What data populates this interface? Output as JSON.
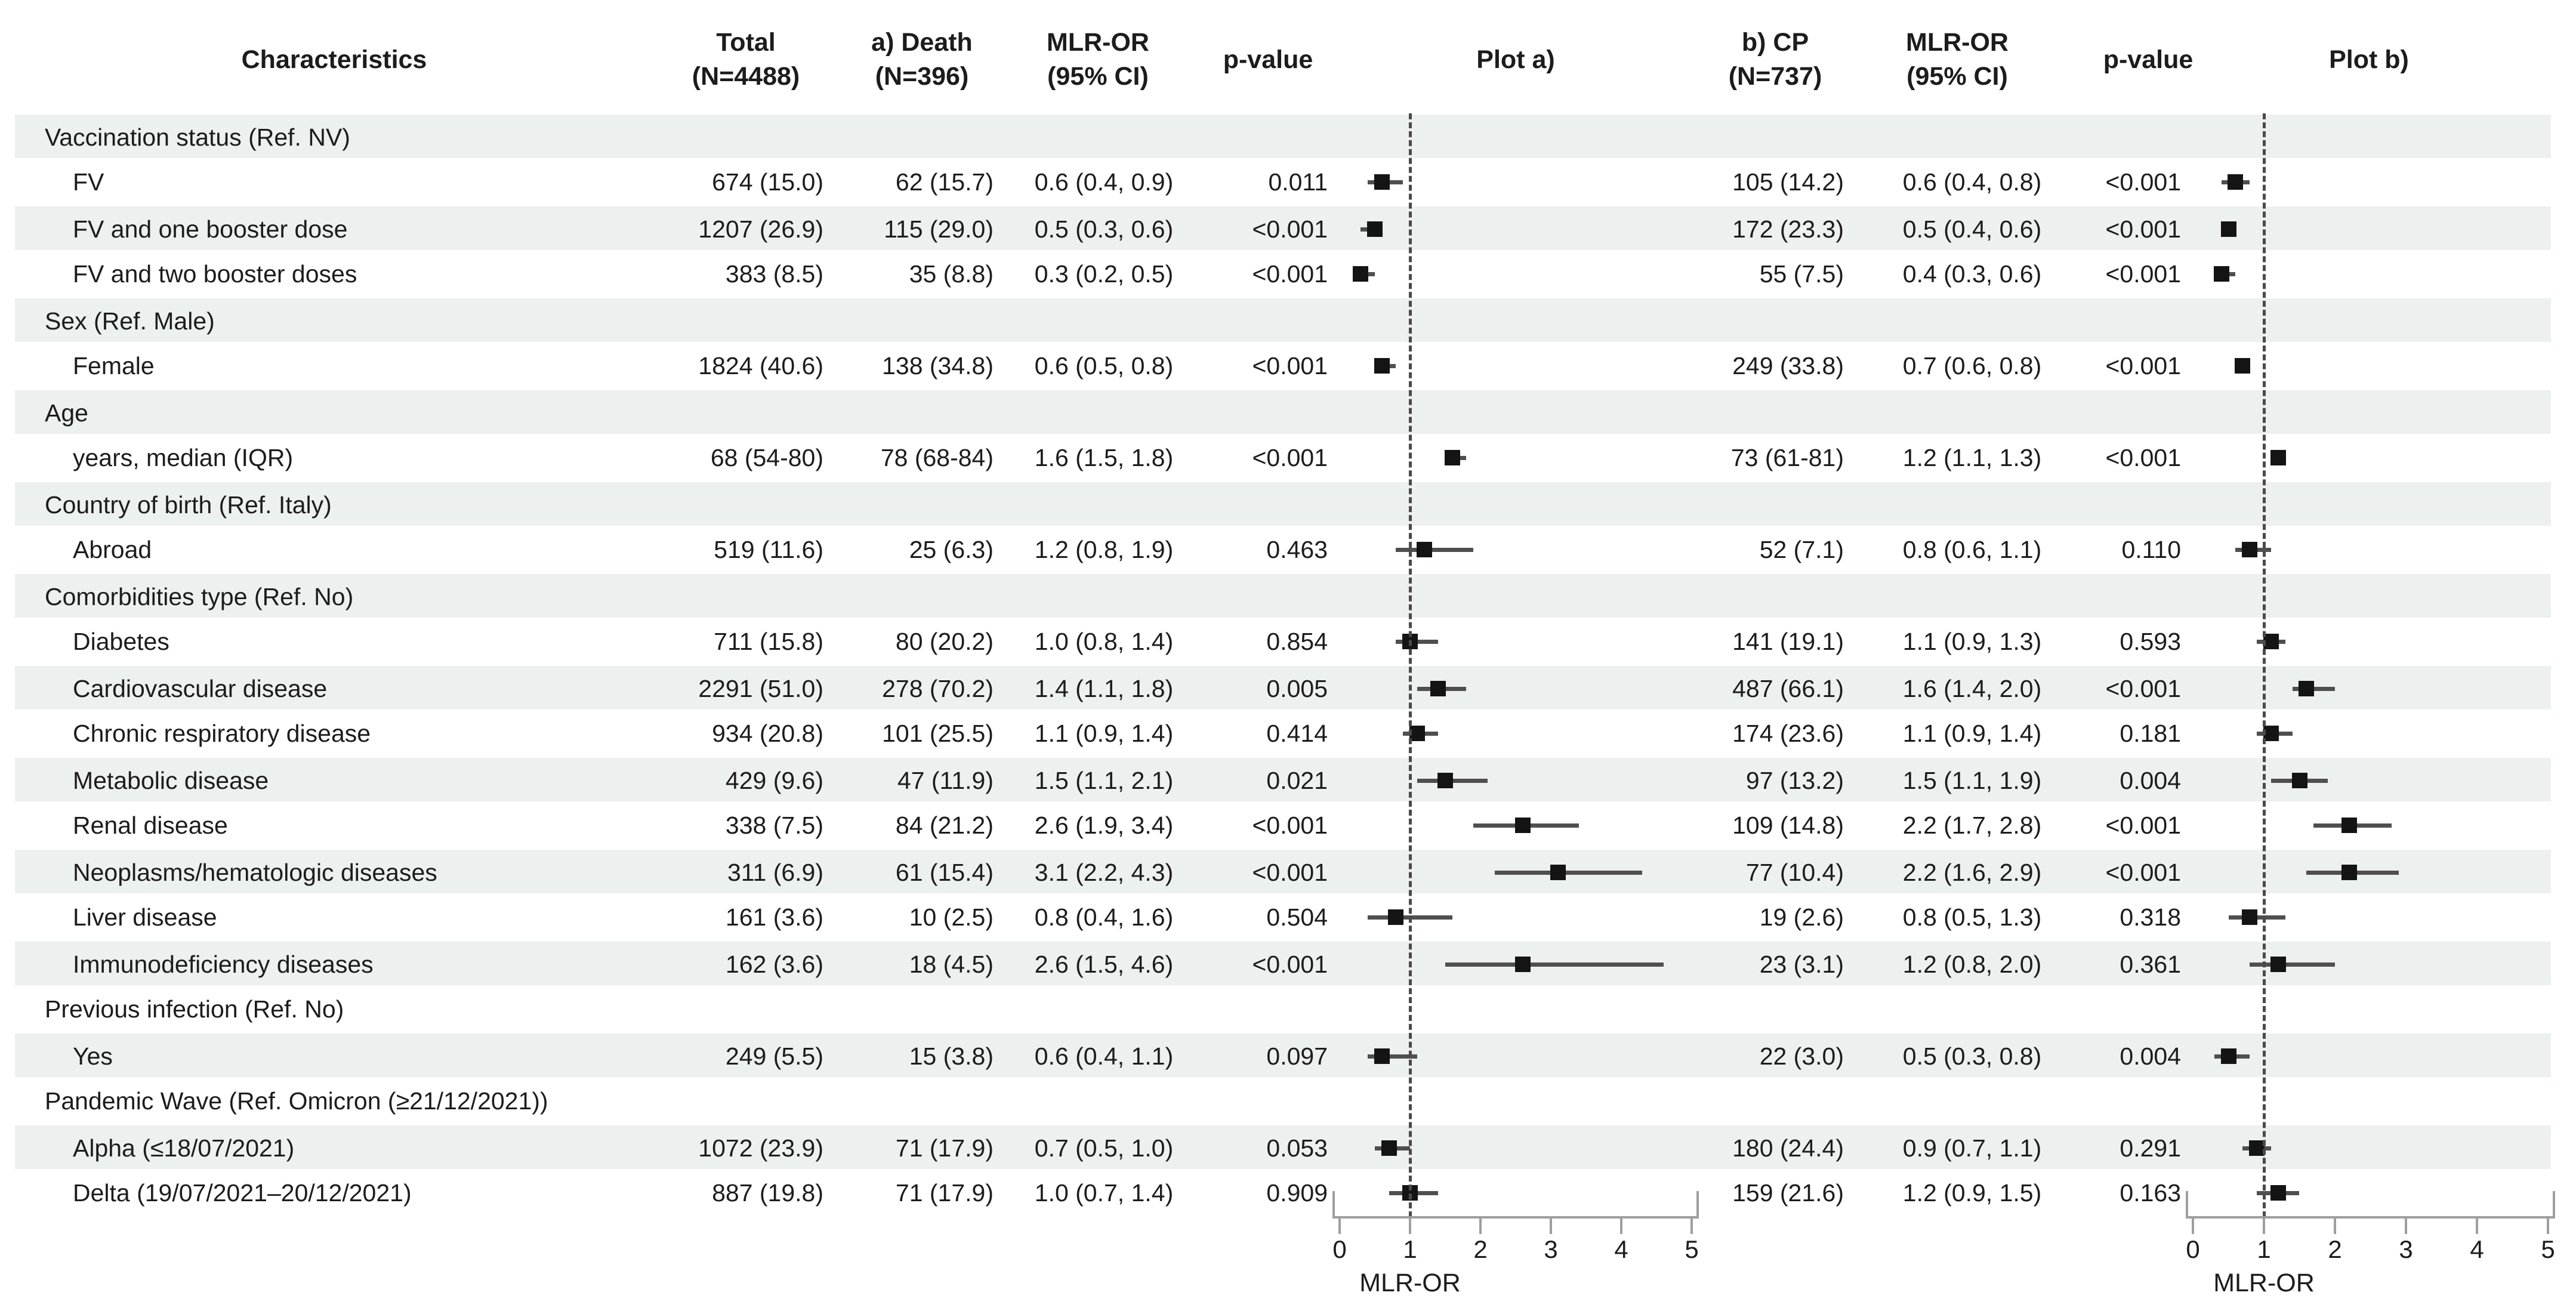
{
  "header": {
    "characteristics": "Characteristics",
    "total_l1": "Total",
    "total_l2": "(N=4488)",
    "death_l1": "a) Death",
    "death_l2": "(N=396)",
    "mlr_a_l1": "MLR-OR",
    "mlr_a_l2": "(95% CI)",
    "pvalue_a": "p-value",
    "plot_a": "Plot a)",
    "cp_l1": "b) CP",
    "cp_l2": "(N=737)",
    "mlr_b_l1": "MLR-OR",
    "mlr_b_l2": "(95% CI)",
    "pvalue_b": "p-value",
    "plot_b": "Plot b)"
  },
  "axis": {
    "ticks": [
      "0",
      "1",
      "2",
      "3",
      "4",
      "5"
    ],
    "label": "MLR-OR"
  },
  "colors": {
    "band": "#ecf0ef",
    "marker": "#141414",
    "ci_line": "#4f4f4f",
    "dashed_ref": "#4a4a4a",
    "axis": "#9e9e9e",
    "text": "#1c1c1c"
  },
  "rows": [
    {
      "type": "section",
      "label": "Vaccination status (Ref. NV)"
    },
    {
      "type": "item",
      "label": "FV",
      "total": "674 (15.0)",
      "death": "62 (15.7)",
      "mlr_a": "0.6 (0.4, 0.9)",
      "p_a": "0.011",
      "fa": [
        0.6,
        0.4,
        0.9
      ],
      "cp": "105 (14.2)",
      "mlr_b": "0.6 (0.4, 0.8)",
      "p_b": "<0.001",
      "fb": [
        0.6,
        0.4,
        0.8
      ]
    },
    {
      "type": "item",
      "label": "FV and one booster dose",
      "total": "1207 (26.9)",
      "death": "115 (29.0)",
      "mlr_a": "0.5 (0.3, 0.6)",
      "p_a": "<0.001",
      "fa": [
        0.5,
        0.3,
        0.6
      ],
      "cp": "172 (23.3)",
      "mlr_b": "0.5 (0.4, 0.6)",
      "p_b": "<0.001",
      "fb": [
        0.5,
        0.4,
        0.6
      ]
    },
    {
      "type": "item",
      "label": "FV and two booster doses",
      "total": "383 (8.5)",
      "death": "35 (8.8)",
      "mlr_a": "0.3 (0.2, 0.5)",
      "p_a": "<0.001",
      "fa": [
        0.3,
        0.2,
        0.5
      ],
      "cp": "55 (7.5)",
      "mlr_b": "0.4 (0.3, 0.6)",
      "p_b": "<0.001",
      "fb": [
        0.4,
        0.3,
        0.6
      ]
    },
    {
      "type": "section",
      "label": "Sex (Ref. Male)"
    },
    {
      "type": "item",
      "label": "Female",
      "total": "1824 (40.6)",
      "death": "138 (34.8)",
      "mlr_a": "0.6 (0.5, 0.8)",
      "p_a": "<0.001",
      "fa": [
        0.6,
        0.5,
        0.8
      ],
      "cp": "249 (33.8)",
      "mlr_b": "0.7 (0.6, 0.8)",
      "p_b": "<0.001",
      "fb": [
        0.7,
        0.6,
        0.8
      ]
    },
    {
      "type": "section",
      "label": "Age"
    },
    {
      "type": "item",
      "label": "years, median (IQR)",
      "total": "68 (54-80)",
      "death": "78 (68-84)",
      "mlr_a": "1.6 (1.5, 1.8)",
      "p_a": "<0.001",
      "fa": [
        1.6,
        1.5,
        1.8
      ],
      "cp": "73 (61-81)",
      "mlr_b": "1.2 (1.1, 1.3)",
      "p_b": "<0.001",
      "fb": [
        1.2,
        1.1,
        1.3
      ]
    },
    {
      "type": "section",
      "label": "Country of birth  (Ref. Italy)"
    },
    {
      "type": "item",
      "label": "Abroad",
      "total": "519 (11.6)",
      "death": "25 (6.3)",
      "mlr_a": "1.2 (0.8, 1.9)",
      "p_a": "0.463",
      "fa": [
        1.2,
        0.8,
        1.9
      ],
      "cp": "52 (7.1)",
      "mlr_b": "0.8 (0.6, 1.1)",
      "p_b": "0.110",
      "fb": [
        0.8,
        0.6,
        1.1
      ]
    },
    {
      "type": "section",
      "label": "Comorbidities type  (Ref. No)"
    },
    {
      "type": "item",
      "label": "Diabetes",
      "total": "711 (15.8)",
      "death": "80 (20.2)",
      "mlr_a": "1.0 (0.8, 1.4)",
      "p_a": "0.854",
      "fa": [
        1.0,
        0.8,
        1.4
      ],
      "cp": "141 (19.1)",
      "mlr_b": "1.1 (0.9, 1.3)",
      "p_b": "0.593",
      "fb": [
        1.1,
        0.9,
        1.3
      ]
    },
    {
      "type": "item",
      "label": "Cardiovascular disease",
      "total": "2291 (51.0)",
      "death": "278 (70.2)",
      "mlr_a": "1.4 (1.1, 1.8)",
      "p_a": "0.005",
      "fa": [
        1.4,
        1.1,
        1.8
      ],
      "cp": "487 (66.1)",
      "mlr_b": "1.6 (1.4, 2.0)",
      "p_b": "<0.001",
      "fb": [
        1.6,
        1.4,
        2.0
      ]
    },
    {
      "type": "item",
      "label": "Chronic respiratory disease",
      "total": "934 (20.8)",
      "death": "101 (25.5)",
      "mlr_a": "1.1 (0.9, 1.4)",
      "p_a": "0.414",
      "fa": [
        1.1,
        0.9,
        1.4
      ],
      "cp": "174 (23.6)",
      "mlr_b": "1.1 (0.9, 1.4)",
      "p_b": "0.181",
      "fb": [
        1.1,
        0.9,
        1.4
      ]
    },
    {
      "type": "item",
      "label": "Metabolic disease",
      "total": "429 (9.6)",
      "death": "47 (11.9)",
      "mlr_a": "1.5 (1.1, 2.1)",
      "p_a": "0.021",
      "fa": [
        1.5,
        1.1,
        2.1
      ],
      "cp": "97 (13.2)",
      "mlr_b": "1.5 (1.1, 1.9)",
      "p_b": "0.004",
      "fb": [
        1.5,
        1.1,
        1.9
      ]
    },
    {
      "type": "item",
      "label": "Renal disease",
      "total": "338 (7.5)",
      "death": "84 (21.2)",
      "mlr_a": "2.6 (1.9, 3.4)",
      "p_a": "<0.001",
      "fa": [
        2.6,
        1.9,
        3.4
      ],
      "cp": "109 (14.8)",
      "mlr_b": "2.2 (1.7, 2.8)",
      "p_b": "<0.001",
      "fb": [
        2.2,
        1.7,
        2.8
      ]
    },
    {
      "type": "item",
      "label": "Neoplasms/hematologic diseases",
      "total": "311 (6.9)",
      "death": "61 (15.4)",
      "mlr_a": "3.1 (2.2, 4.3)",
      "p_a": "<0.001",
      "fa": [
        3.1,
        2.2,
        4.3
      ],
      "cp": "77 (10.4)",
      "mlr_b": "2.2 (1.6, 2.9)",
      "p_b": "<0.001",
      "fb": [
        2.2,
        1.6,
        2.9
      ]
    },
    {
      "type": "item",
      "label": "Liver disease",
      "total": "161 (3.6)",
      "death": "10 (2.5)",
      "mlr_a": "0.8 (0.4, 1.6)",
      "p_a": "0.504",
      "fa": [
        0.8,
        0.4,
        1.6
      ],
      "cp": "19 (2.6)",
      "mlr_b": "0.8 (0.5, 1.3)",
      "p_b": "0.318",
      "fb": [
        0.8,
        0.5,
        1.3
      ]
    },
    {
      "type": "item",
      "label": "Immunodeficiency diseases",
      "total": "162 (3.6)",
      "death": "18 (4.5)",
      "mlr_a": "2.6 (1.5, 4.6)",
      "p_a": "<0.001",
      "fa": [
        2.6,
        1.5,
        4.6
      ],
      "cp": "23 (3.1)",
      "mlr_b": "1.2 (0.8, 2.0)",
      "p_b": "0.361",
      "fb": [
        1.2,
        0.8,
        2.0
      ]
    },
    {
      "type": "section",
      "label": "Previous infection (Ref. No)"
    },
    {
      "type": "item",
      "label": "Yes",
      "total": "249 (5.5)",
      "death": "15 (3.8)",
      "mlr_a": "0.6 (0.4, 1.1)",
      "p_a": "0.097",
      "fa": [
        0.6,
        0.4,
        1.1
      ],
      "cp": "22 (3.0)",
      "mlr_b": "0.5 (0.3, 0.8)",
      "p_b": "0.004",
      "fb": [
        0.5,
        0.3,
        0.8
      ]
    },
    {
      "type": "section",
      "label": "Pandemic Wave  (Ref. Omicron (≥21/12/2021))"
    },
    {
      "type": "item",
      "label": "Alpha (≤18/07/2021)",
      "total": "1072 (23.9)",
      "death": "71 (17.9)",
      "mlr_a": "0.7 (0.5, 1.0)",
      "p_a": "0.053",
      "fa": [
        0.7,
        0.5,
        1.0
      ],
      "cp": "180 (24.4)",
      "mlr_b": "0.9 (0.7, 1.1)",
      "p_b": "0.291",
      "fb": [
        0.9,
        0.7,
        1.1
      ]
    },
    {
      "type": "item",
      "label": "Delta (19/07/2021–20/12/2021)",
      "total": "887 (19.8)",
      "death": "71 (17.9)",
      "mlr_a": "1.0 (0.7, 1.4)",
      "p_a": "0.909",
      "fa": [
        1.0,
        0.7,
        1.4
      ],
      "cp": "159 (21.6)",
      "mlr_b": "1.2 (0.9, 1.5)",
      "p_b": "0.163",
      "fb": [
        1.2,
        0.9,
        1.5
      ]
    }
  ],
  "chart_data": [
    {
      "type": "scatter",
      "subtype": "forest",
      "title": "Plot a) — MLR-OR (95% CI) for Death (N=396)",
      "xlabel": "MLR-OR",
      "xlim": [
        0,
        5
      ],
      "x_ticks": [
        0,
        1,
        2,
        3,
        4,
        5
      ],
      "reference_line_x": 1,
      "categories": [
        "FV",
        "FV and one booster dose",
        "FV and two booster doses",
        "Female",
        "years, median (IQR)",
        "Abroad",
        "Diabetes",
        "Cardiovascular disease",
        "Chronic respiratory disease",
        "Metabolic disease",
        "Renal disease",
        "Neoplasms/hematologic diseases",
        "Liver disease",
        "Immunodeficiency diseases",
        "Yes",
        "Alpha (≤18/07/2021)",
        "Delta (19/07/2021–20/12/2021)"
      ],
      "or": [
        0.6,
        0.5,
        0.3,
        0.6,
        1.6,
        1.2,
        1.0,
        1.4,
        1.1,
        1.5,
        2.6,
        3.1,
        0.8,
        2.6,
        0.6,
        0.7,
        1.0
      ],
      "ci_low": [
        0.4,
        0.3,
        0.2,
        0.5,
        1.5,
        0.8,
        0.8,
        1.1,
        0.9,
        1.1,
        1.9,
        2.2,
        0.4,
        1.5,
        0.4,
        0.5,
        0.7
      ],
      "ci_high": [
        0.9,
        0.6,
        0.5,
        0.8,
        1.8,
        1.9,
        1.4,
        1.8,
        1.4,
        2.1,
        3.4,
        4.3,
        1.6,
        4.6,
        1.1,
        1.0,
        1.4
      ],
      "p_values": [
        "0.011",
        "<0.001",
        "<0.001",
        "<0.001",
        "<0.001",
        "0.463",
        "0.854",
        "0.005",
        "0.414",
        "0.021",
        "<0.001",
        "<0.001",
        "0.504",
        "<0.001",
        "0.097",
        "0.053",
        "0.909"
      ]
    },
    {
      "type": "scatter",
      "subtype": "forest",
      "title": "Plot b) — MLR-OR (95% CI) for CP (N=737)",
      "xlabel": "MLR-OR",
      "xlim": [
        0,
        5
      ],
      "x_ticks": [
        0,
        1,
        2,
        3,
        4,
        5
      ],
      "reference_line_x": 1,
      "categories": [
        "FV",
        "FV and one booster dose",
        "FV and two booster doses",
        "Female",
        "years, median (IQR)",
        "Abroad",
        "Diabetes",
        "Cardiovascular disease",
        "Chronic respiratory disease",
        "Metabolic disease",
        "Renal disease",
        "Neoplasms/hematologic diseases",
        "Liver disease",
        "Immunodeficiency diseases",
        "Yes",
        "Alpha (≤18/07/2021)",
        "Delta (19/07/2021–20/12/2021)"
      ],
      "or": [
        0.6,
        0.5,
        0.4,
        0.7,
        1.2,
        0.8,
        1.1,
        1.6,
        1.1,
        1.5,
        2.2,
        2.2,
        0.8,
        1.2,
        0.5,
        0.9,
        1.2
      ],
      "ci_low": [
        0.4,
        0.4,
        0.3,
        0.6,
        1.1,
        0.6,
        0.9,
        1.4,
        0.9,
        1.1,
        1.7,
        1.6,
        0.5,
        0.8,
        0.3,
        0.7,
        0.9
      ],
      "ci_high": [
        0.8,
        0.6,
        0.6,
        0.8,
        1.3,
        1.1,
        1.3,
        2.0,
        1.4,
        1.9,
        2.8,
        2.9,
        1.3,
        2.0,
        0.8,
        1.1,
        1.5
      ],
      "p_values": [
        "<0.001",
        "<0.001",
        "<0.001",
        "<0.001",
        "<0.001",
        "0.110",
        "0.593",
        "<0.001",
        "0.181",
        "0.004",
        "<0.001",
        "<0.001",
        "0.318",
        "0.361",
        "0.004",
        "0.291",
        "0.163"
      ]
    }
  ]
}
